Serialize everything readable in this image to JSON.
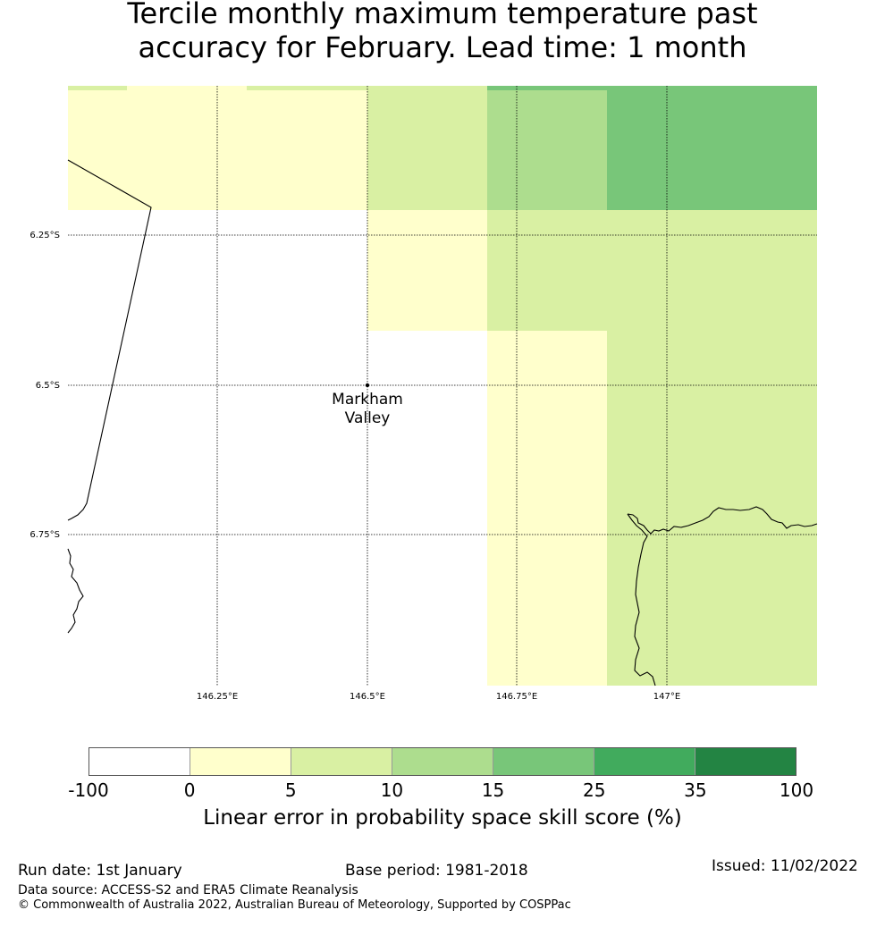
{
  "title": {
    "line1": "Tercile monthly maximum temperature past",
    "line2": "accuracy for February. Lead time: 1 month"
  },
  "map": {
    "lat_labels": [
      "6.25°S",
      "6.5°S",
      "6.75°S"
    ],
    "lon_labels": [
      "146.25°E",
      "146.5°E",
      "146.75°E",
      "147°E"
    ],
    "place": {
      "name_line1": "Markham",
      "name_line2": "Valley"
    }
  },
  "colorbar": {
    "colors": [
      "#ffffff",
      "#ffffcc",
      "#d9f0a3",
      "#addd8e",
      "#78c679",
      "#41ab5d",
      "#238443"
    ],
    "ticks": [
      "-100",
      "0",
      "5",
      "10",
      "15",
      "25",
      "35",
      "100"
    ],
    "label": "Linear error in probability space skill score (%)"
  },
  "footer": {
    "run_date": "Run date: 1st January",
    "base_period": "Base period: 1981-2018",
    "issued": "Issued: 11/02/2022",
    "data_source": "Data source: ACCESS-S2 and ERA5 Climate Reanalysis",
    "copyright": "© Commonwealth of Australia 2022, Australian Bureau of Meteorology, Supported by COSPPac"
  }
}
